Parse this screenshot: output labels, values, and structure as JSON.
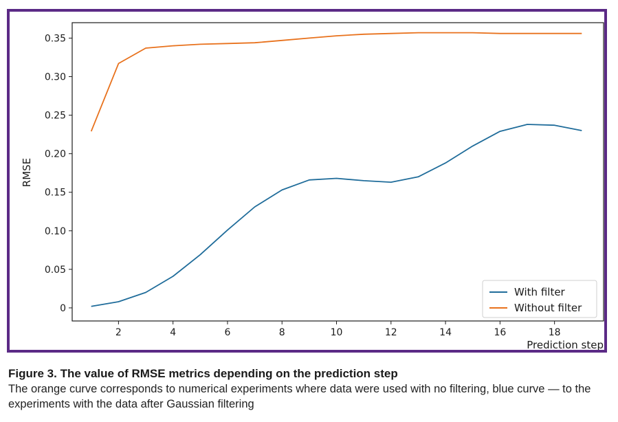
{
  "colors": {
    "frame": "#5b2a86",
    "series_with_filter": "#1f6c9a",
    "series_without_filter": "#e8711c"
  },
  "chart_data": {
    "type": "line",
    "xlabel": "Prediction step",
    "ylabel": "RMSE",
    "xlim": [
      0.3,
      19.8
    ],
    "ylim": [
      -0.017,
      0.37
    ],
    "xticks": [
      2,
      4,
      6,
      8,
      10,
      12,
      14,
      16,
      18
    ],
    "yticks": [
      0,
      0.05,
      0.1,
      0.15,
      0.2,
      0.25,
      0.3,
      0.35
    ],
    "ytick_labels": [
      "0",
      "0.05",
      "0.10",
      "0.15",
      "0.20",
      "0.25",
      "0.30",
      "0.35"
    ],
    "legend_position": "bottom-right",
    "grid": false,
    "x": [
      1,
      2,
      3,
      4,
      5,
      6,
      7,
      8,
      9,
      10,
      11,
      12,
      13,
      14,
      15,
      16,
      17,
      18,
      19
    ],
    "series": [
      {
        "name": "With filter",
        "color": "#1f6c9a",
        "values": [
          0.002,
          0.008,
          0.02,
          0.041,
          0.069,
          0.101,
          0.131,
          0.153,
          0.166,
          0.168,
          0.165,
          0.163,
          0.17,
          0.188,
          0.21,
          0.229,
          0.238,
          0.237,
          0.23
        ]
      },
      {
        "name": "Without filter",
        "color": "#e8711c",
        "values": [
          0.229,
          0.317,
          0.337,
          0.34,
          0.342,
          0.343,
          0.344,
          0.347,
          0.35,
          0.353,
          0.355,
          0.356,
          0.357,
          0.357,
          0.357,
          0.356,
          0.356,
          0.356,
          0.356
        ]
      }
    ]
  },
  "caption": {
    "title": "Figure 3. The value of RMSE metrics depending on the prediction step",
    "text": "The orange curve corresponds to numerical experiments where data were used with no filtering, blue curve — to the experiments with the data after Gaussian filtering"
  }
}
